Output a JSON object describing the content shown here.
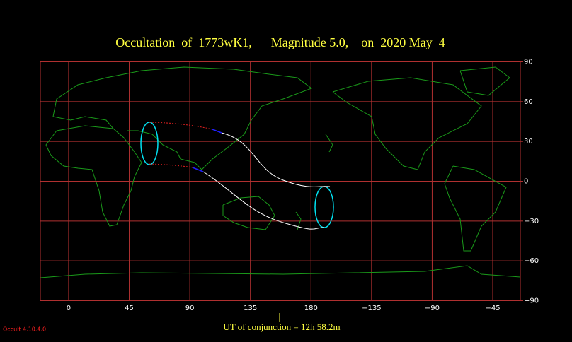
{
  "title": "Occultation  of  1773wK1,      Magnitude 5.0,    on  2020 May  4",
  "footer": "UT of conjunction = 12h 58.2m",
  "version": "Occult 4.10.4.0",
  "xlim": [
    -21,
    335.5
  ],
  "ylim": [
    -90,
    90
  ],
  "xticks": [
    0,
    45,
    90,
    135,
    180,
    {
      "value": 225,
      "label": "−135"
    },
    {
      "value": 270,
      "label": "−90"
    },
    {
      "value": 315,
      "label": "−45"
    }
  ],
  "yticks": [
    90,
    60,
    30,
    0,
    {
      "value": -30,
      "label": "−30"
    },
    {
      "value": -60,
      "label": "−60"
    },
    {
      "value": -90,
      "label": "−90"
    }
  ]
}
